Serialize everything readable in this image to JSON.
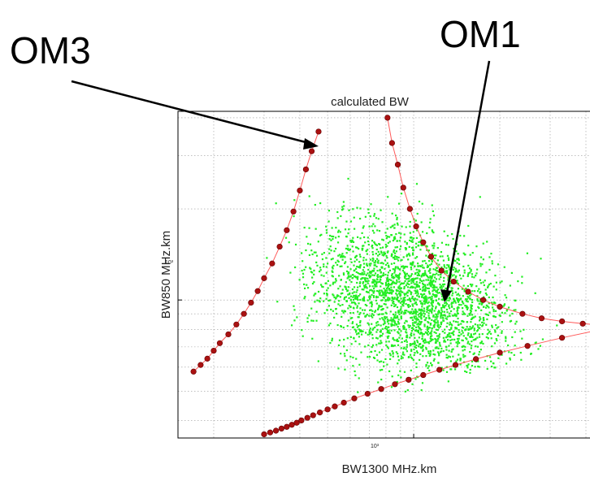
{
  "annotations": [
    {
      "text": "OM3"
    },
    {
      "text": "OM1"
    }
  ],
  "chart_data": {
    "type": "scatter",
    "title": "calculated BW",
    "xlabel": "BW1300 MHz.km",
    "ylabel": "BW850 MHz.km",
    "x_scale": "log",
    "y_scale": "log",
    "xlim": [
      150,
      4500
    ],
    "ylim": [
      350,
      4200
    ],
    "x_tick_labels": [
      "10³"
    ],
    "y_tick_labels": [
      "10³"
    ],
    "grid": true,
    "colors": {
      "scatter": "#22ee22",
      "boundary_line": "#ff5a5a",
      "boundary_marker": "#aa1111",
      "axes": "#000000",
      "grid": "#999999"
    },
    "series": [
      {
        "kind": "cloud",
        "cluster": {
          "x_center": 1000,
          "y_center": 1000,
          "x_spread": 0.42,
          "y_spread": 0.28
        },
        "count": 2600
      },
      {
        "kind": "boundary",
        "points": [
          [
            170,
            580
          ],
          [
            180,
            610
          ],
          [
            190,
            640
          ],
          [
            200,
            680
          ],
          [
            210,
            720
          ],
          [
            225,
            770
          ],
          [
            240,
            830
          ],
          [
            255,
            900
          ],
          [
            270,
            980
          ],
          [
            285,
            1070
          ],
          [
            300,
            1180
          ],
          [
            320,
            1320
          ],
          [
            340,
            1500
          ],
          [
            360,
            1700
          ],
          [
            380,
            1960
          ],
          [
            400,
            2300
          ],
          [
            420,
            2700
          ],
          [
            440,
            3100
          ],
          [
            465,
            3600
          ]
        ]
      },
      {
        "kind": "boundary",
        "points": [
          [
            810,
            4000
          ],
          [
            840,
            3300
          ],
          [
            880,
            2800
          ],
          [
            920,
            2350
          ],
          [
            970,
            2000
          ],
          [
            1020,
            1750
          ],
          [
            1080,
            1550
          ],
          [
            1150,
            1390
          ],
          [
            1250,
            1250
          ],
          [
            1380,
            1150
          ],
          [
            1550,
            1065
          ],
          [
            1750,
            1000
          ],
          [
            2000,
            950
          ],
          [
            2400,
            900
          ],
          [
            2800,
            870
          ],
          [
            3300,
            850
          ],
          [
            3900,
            835
          ],
          [
            4400,
            828
          ]
        ]
      },
      {
        "kind": "boundary",
        "points": [
          [
            300,
            360
          ],
          [
            315,
            365
          ],
          [
            330,
            370
          ],
          [
            345,
            376
          ],
          [
            360,
            381
          ],
          [
            375,
            387
          ],
          [
            390,
            393
          ],
          [
            405,
            400
          ],
          [
            425,
            408
          ],
          [
            445,
            416
          ],
          [
            470,
            425
          ],
          [
            500,
            435
          ],
          [
            530,
            445
          ],
          [
            570,
            458
          ],
          [
            620,
            473
          ],
          [
            690,
            490
          ],
          [
            770,
            508
          ],
          [
            860,
            527
          ],
          [
            960,
            545
          ],
          [
            1080,
            565
          ],
          [
            1230,
            588
          ],
          [
            1400,
            610
          ],
          [
            1650,
            638
          ],
          [
            2000,
            670
          ],
          [
            2500,
            705
          ],
          [
            3300,
            750
          ],
          [
            4400,
            795
          ]
        ]
      }
    ]
  }
}
